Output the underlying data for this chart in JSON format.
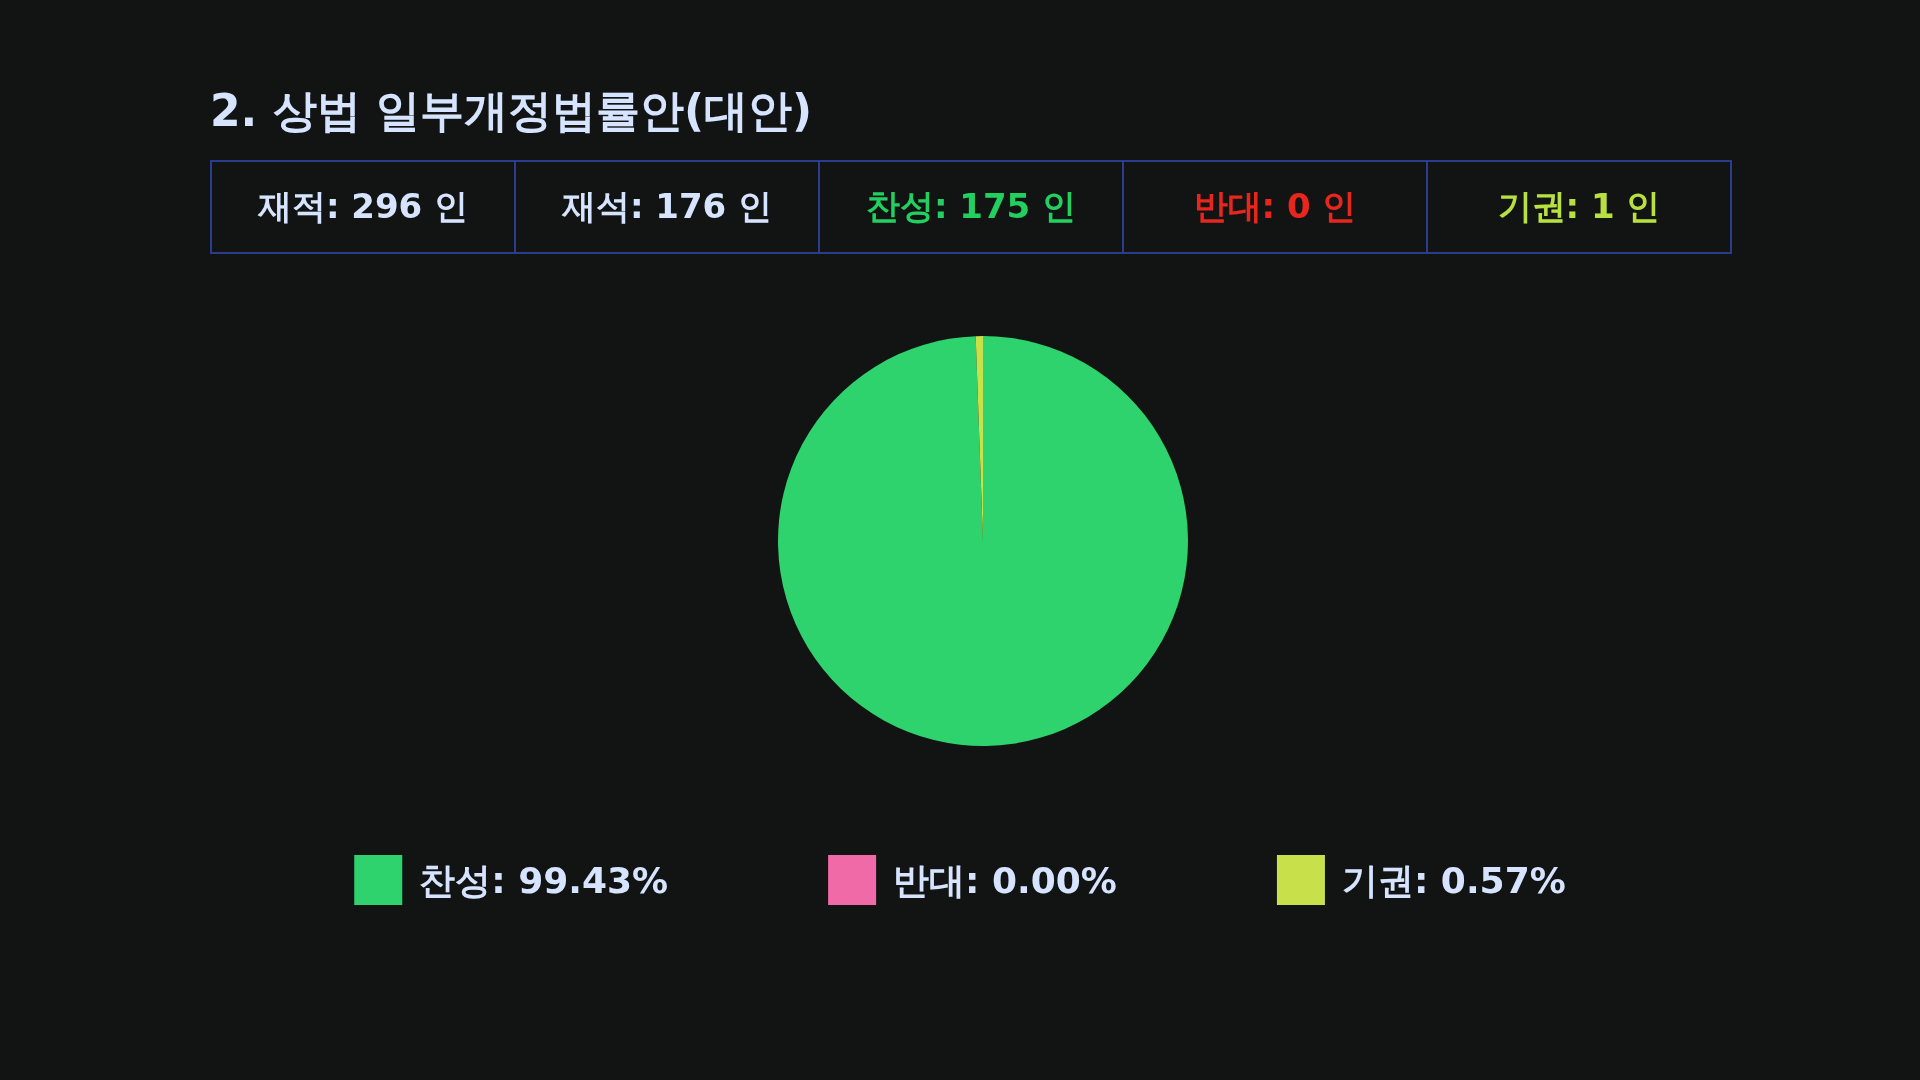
{
  "chart_data": {
    "type": "pie",
    "title": "2. 상법 일부개정법률안(대안)",
    "categories": [
      "찬성: 99.43%",
      "반대: 0.00%",
      "기권: 0.57%"
    ],
    "values": [
      99.43,
      0,
      0.57
    ],
    "colors": [
      "#2ed36e",
      "#f06aa8",
      "#c8e04a"
    ],
    "legend": "bottom",
    "annotations": [
      "재적: 296 인",
      "재석: 176 인",
      "찬성: 175 인",
      "반대: 0 인",
      "기권: 1 인"
    ]
  }
}
